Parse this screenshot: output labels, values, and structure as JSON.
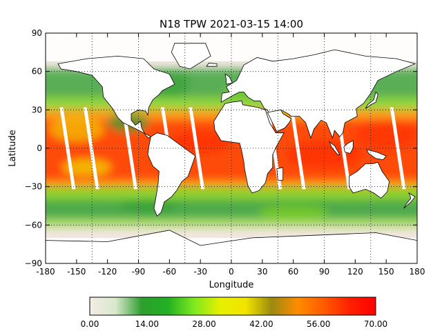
{
  "title": "N18 TPW 2021-03-15 14:00",
  "axes": {
    "xlabel": "Longitude",
    "ylabel": "Latitude",
    "xlim": [
      -180,
      180
    ],
    "ylim": [
      -90,
      90
    ],
    "xticks": [
      "-180",
      "-150",
      "-120",
      "-90",
      "-60",
      "-30",
      "0",
      "30",
      "60",
      "90",
      "120",
      "150",
      "180"
    ],
    "yticks": [
      "90",
      "60",
      "30",
      "0",
      "−30",
      "−60",
      "−90"
    ],
    "grid": "dotted",
    "grid_lines_lon": [
      -135,
      -90,
      -45,
      0,
      45,
      90,
      135
    ],
    "grid_lines_lat": [
      60,
      30,
      0,
      -30,
      -60
    ]
  },
  "colorbar": {
    "range": [
      0,
      70
    ],
    "tick_labels": [
      "0.00",
      "14.00",
      "28.00",
      "42.00",
      "56.00",
      "70.00"
    ],
    "stops": [
      "#f4ece6",
      "#d8e8cc",
      "#2e9e2e",
      "#22b022",
      "#7de820",
      "#e6f000",
      "#f2e400",
      "#9a8a10",
      "#ff8c00",
      "#ff5a00",
      "#ff2000",
      "#ff0000"
    ]
  },
  "colors": {
    "land": "#ffffff",
    "low": "#ead8cf",
    "green": "#33a033",
    "lightgreen": "#7ed321",
    "yellow": "#f0e000",
    "orange": "#ff8c00",
    "red": "#ff2a00",
    "gap": "#ffffff"
  }
}
